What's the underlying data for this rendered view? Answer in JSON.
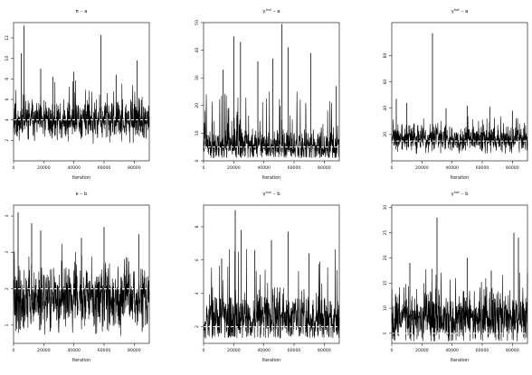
{
  "figure": {
    "background": "#ffffff",
    "trace_color": "#000000",
    "truth_color": "#ffffff"
  },
  "chart_data": [
    {
      "type": "line",
      "title": "π – a",
      "xlabel": "Iteration",
      "ylabel": "",
      "xlim": [
        0,
        90000
      ],
      "ylim": [
        0,
        13.5
      ],
      "xticks": [
        0,
        20000,
        40000,
        60000,
        80000
      ],
      "xtick_labels": [
        "0",
        "20000",
        "40000",
        "60000",
        "80000"
      ],
      "yticks": [
        2,
        4,
        6,
        8,
        10,
        12
      ],
      "ytick_labels": [
        "2",
        "4",
        "6",
        "8",
        "10",
        "12"
      ],
      "true_value": 4,
      "trace": {
        "center": 3.9,
        "spread": 0.9,
        "min": 1.6,
        "peak_prob": 0.05,
        "peak_scale": 1.8,
        "seed": 11
      },
      "spikes": [
        [
          7000,
          13.2
        ],
        [
          5200,
          10.5
        ],
        [
          18000,
          9.0
        ],
        [
          58000,
          12.3
        ],
        [
          40000,
          8.7
        ],
        [
          82000,
          9.8
        ],
        [
          26000,
          8.2
        ],
        [
          68000,
          8.4
        ]
      ],
      "grid": false,
      "legend": "none"
    },
    {
      "type": "line",
      "title": "γ^{insl} – a",
      "title_parts": {
        "base": "γ",
        "sup": "insl",
        "rest": " – a"
      },
      "xlabel": "Iteration",
      "ylabel": "",
      "xlim": [
        0,
        90000
      ],
      "ylim": [
        0,
        50
      ],
      "xticks": [
        0,
        20000,
        40000,
        60000,
        80000
      ],
      "xtick_labels": [
        "0",
        "20000",
        "40000",
        "60000",
        "80000"
      ],
      "yticks": [
        0,
        10,
        20,
        30,
        40,
        50
      ],
      "ytick_labels": [
        "0",
        "10",
        "20",
        "30",
        "40",
        "50"
      ],
      "true_value": 5,
      "trace": {
        "center": 5.5,
        "spread": 2.8,
        "min": 1.0,
        "peak_prob": 0.08,
        "peak_scale": 9.0,
        "seed": 23
      },
      "spikes": [
        [
          20000,
          45.0
        ],
        [
          24500,
          43.0
        ],
        [
          52000,
          49.5
        ],
        [
          56000,
          41.0
        ],
        [
          36000,
          36.0
        ],
        [
          71000,
          39.0
        ],
        [
          88000,
          27.0
        ],
        [
          13000,
          33.0
        ],
        [
          46000,
          37.0
        ]
      ],
      "grid": false,
      "legend": "none"
    },
    {
      "type": "line",
      "title": "γ^{hat} – a",
      "title_parts": {
        "base": "γ",
        "sup": "hat",
        "rest": " – a"
      },
      "xlabel": "Iteration",
      "ylabel": "",
      "xlim": [
        0,
        90000
      ],
      "ylim": [
        0,
        105
      ],
      "xticks": [
        0,
        20000,
        40000,
        60000,
        80000
      ],
      "xtick_labels": [
        "0",
        "20000",
        "40000",
        "60000",
        "80000"
      ],
      "yticks": [
        20,
        40,
        60,
        80
      ],
      "ytick_labels": [
        "20",
        "40",
        "60",
        "80"
      ],
      "true_value": 15,
      "trace": {
        "center": 17,
        "spread": 5.0,
        "min": 5,
        "peak_prob": 0.04,
        "peak_scale": 8.0,
        "seed": 37
      },
      "spikes": [
        [
          27000,
          97
        ],
        [
          3000,
          47
        ],
        [
          10000,
          44
        ],
        [
          50000,
          42
        ],
        [
          65000,
          41
        ],
        [
          80000,
          38
        ],
        [
          36000,
          40
        ]
      ],
      "grid": false,
      "legend": "none"
    },
    {
      "type": "line",
      "title": "κ – b",
      "xlabel": "Iteration",
      "ylabel": "",
      "xlim": [
        0,
        90000
      ],
      "ylim": [
        0.5,
        4.3
      ],
      "xticks": [
        0,
        20000,
        40000,
        60000,
        80000
      ],
      "xtick_labels": [
        "0",
        "20000",
        "40000",
        "60000",
        "80000"
      ],
      "yticks": [
        1,
        2,
        3,
        4
      ],
      "ytick_labels": [
        "1",
        "2",
        "3",
        "4"
      ],
      "true_value": 2,
      "trace": {
        "center": 1.7,
        "spread": 0.42,
        "min": 0.7,
        "peak_prob": 0.05,
        "peak_scale": 0.7,
        "seed": 41
      },
      "spikes": [
        [
          3000,
          4.1
        ],
        [
          12000,
          3.8
        ],
        [
          18000,
          3.6
        ],
        [
          60000,
          3.7
        ],
        [
          45000,
          3.4
        ],
        [
          83000,
          3.5
        ]
      ],
      "grid": false,
      "legend": "none"
    },
    {
      "type": "line",
      "title": "γ^{insl} – b",
      "title_parts": {
        "base": "γ",
        "sup": "insl",
        "rest": " – b"
      },
      "xlabel": "Iteration",
      "ylabel": "",
      "xlim": [
        0,
        90000
      ],
      "ylim": [
        1,
        9.3
      ],
      "xticks": [
        0,
        20000,
        40000,
        60000,
        80000
      ],
      "xtick_labels": [
        "0",
        "20000",
        "40000",
        "60000",
        "80000"
      ],
      "yticks": [
        2,
        4,
        6,
        8
      ],
      "ytick_labels": [
        "2",
        "4",
        "6",
        "8"
      ],
      "true_value": 2,
      "trace": {
        "center": 2.5,
        "spread": 0.75,
        "min": 1.3,
        "peak_prob": 0.06,
        "peak_scale": 1.9,
        "seed": 53
      },
      "spikes": [
        [
          21000,
          9.0
        ],
        [
          25000,
          7.8
        ],
        [
          45000,
          7.2
        ],
        [
          56000,
          7.7
        ],
        [
          70000,
          6.4
        ],
        [
          12000,
          6.1
        ],
        [
          34000,
          6.6
        ]
      ],
      "grid": false,
      "legend": "none"
    },
    {
      "type": "line",
      "title": "γ^{hat} – b",
      "title_parts": {
        "base": "γ",
        "sup": "hat",
        "rest": " – b"
      },
      "xlabel": "Iteration",
      "ylabel": "",
      "xlim": [
        0,
        90000
      ],
      "ylim": [
        3,
        30.5
      ],
      "xticks": [
        0,
        20000,
        40000,
        60000,
        80000
      ],
      "xtick_labels": [
        "0",
        "20000",
        "40000",
        "60000",
        "80000"
      ],
      "yticks": [
        5,
        10,
        15,
        20,
        25,
        30
      ],
      "ytick_labels": [
        "5",
        "10",
        "15",
        "20",
        "25",
        "30"
      ],
      "true_value": 5,
      "trace": {
        "center": 8.0,
        "spread": 2.3,
        "min": 3.4,
        "peak_prob": 0.05,
        "peak_scale": 4.5,
        "seed": 67
      },
      "spikes": [
        [
          30000,
          28.0
        ],
        [
          81000,
          25.0
        ],
        [
          84000,
          24.0
        ],
        [
          12000,
          19.0
        ],
        [
          50000,
          20.0
        ],
        [
          66000,
          17.5
        ]
      ],
      "grid": false,
      "legend": "none"
    }
  ]
}
